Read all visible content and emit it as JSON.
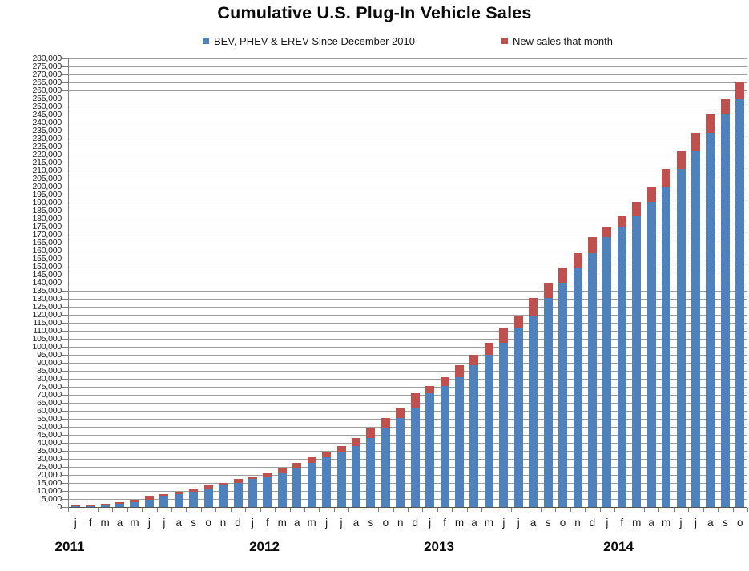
{
  "page": {
    "background": "#ffffff"
  },
  "chart_data": {
    "type": "bar",
    "stacked": true,
    "title": "Cumulative U.S. Plug-In Vehicle Sales",
    "legend_position": "top",
    "grid": true,
    "legend": [
      {
        "label": "BEV, PHEV & EREV Since December 2010",
        "color": "#4f81bd",
        "series": "cumulative_base"
      },
      {
        "label": "New sales that month",
        "color": "#c0504d",
        "series": "new_sales"
      }
    ],
    "colors": {
      "cumulative_bar": "#4f81bd",
      "new_sales_bar": "#c0504d",
      "gridline": "#9d9d9d",
      "axis": "#555555",
      "text": "#191919"
    },
    "y_axis": {
      "min": 0,
      "max": 280000,
      "step": 5000,
      "tick_format": "#,##0"
    },
    "x_axis": {
      "unit": "month",
      "month_letter_order": [
        "j",
        "f",
        "m",
        "a",
        "m",
        "j",
        "j",
        "a",
        "s",
        "o",
        "n",
        "d"
      ]
    },
    "start_cumulative_dec_2010": 345,
    "years": [
      {
        "label": "2011",
        "months": [
          {
            "m": "j",
            "new_sales": 408,
            "cumulative_total": 753
          },
          {
            "m": "f",
            "new_sales": 348,
            "cumulative_total": 1101
          },
          {
            "m": "m",
            "new_sales": 906,
            "cumulative_total": 2007
          },
          {
            "m": "a",
            "new_sales": 1066,
            "cumulative_total": 3073
          },
          {
            "m": "m",
            "new_sales": 1623,
            "cumulative_total": 4696
          },
          {
            "m": "j",
            "new_sales": 2269,
            "cumulative_total": 6965
          },
          {
            "m": "j",
            "new_sales": 1056,
            "cumulative_total": 8021
          },
          {
            "m": "a",
            "new_sales": 1664,
            "cumulative_total": 9685
          },
          {
            "m": "s",
            "new_sales": 1754,
            "cumulative_total": 11439
          },
          {
            "m": "o",
            "new_sales": 1957,
            "cumulative_total": 13396
          },
          {
            "m": "n",
            "new_sales": 1811,
            "cumulative_total": 15207
          },
          {
            "m": "d",
            "new_sales": 2483,
            "cumulative_total": 17690
          }
        ]
      },
      {
        "label": "2012",
        "months": [
          {
            "m": "j",
            "new_sales": 1290,
            "cumulative_total": 18980
          },
          {
            "m": "f",
            "new_sales": 1852,
            "cumulative_total": 20832
          },
          {
            "m": "m",
            "new_sales": 3879,
            "cumulative_total": 24711
          },
          {
            "m": "a",
            "new_sales": 2594,
            "cumulative_total": 27305
          },
          {
            "m": "m",
            "new_sales": 3562,
            "cumulative_total": 30867
          },
          {
            "m": "j",
            "new_sales": 3697,
            "cumulative_total": 34564
          },
          {
            "m": "j",
            "new_sales": 3648,
            "cumulative_total": 38212
          },
          {
            "m": "a",
            "new_sales": 4715,
            "cumulative_total": 42927
          },
          {
            "m": "s",
            "new_sales": 5972,
            "cumulative_total": 48899
          },
          {
            "m": "o",
            "new_sales": 6535,
            "cumulative_total": 55434
          },
          {
            "m": "n",
            "new_sales": 6587,
            "cumulative_total": 62021
          },
          {
            "m": "d",
            "new_sales": 9091,
            "cumulative_total": 71112
          }
        ]
      },
      {
        "label": "2013",
        "months": [
          {
            "m": "j",
            "new_sales": 4510,
            "cumulative_total": 75622
          },
          {
            "m": "f",
            "new_sales": 5585,
            "cumulative_total": 81207
          },
          {
            "m": "m",
            "new_sales": 7138,
            "cumulative_total": 88345
          },
          {
            "m": "a",
            "new_sales": 6534,
            "cumulative_total": 94879
          },
          {
            "m": "m",
            "new_sales": 7767,
            "cumulative_total": 102646
          },
          {
            "m": "j",
            "new_sales": 8860,
            "cumulative_total": 111506
          },
          {
            "m": "j",
            "new_sales": 7510,
            "cumulative_total": 119016
          },
          {
            "m": "a",
            "new_sales": 11305,
            "cumulative_total": 130321
          },
          {
            "m": "s",
            "new_sales": 9033,
            "cumulative_total": 139354
          },
          {
            "m": "o",
            "new_sales": 9531,
            "cumulative_total": 148885
          },
          {
            "m": "n",
            "new_sales": 9820,
            "cumulative_total": 158705
          },
          {
            "m": "d",
            "new_sales": 9567,
            "cumulative_total": 168272
          }
        ]
      },
      {
        "label": "2014",
        "months": [
          {
            "m": "j",
            "new_sales": 6127,
            "cumulative_total": 174399
          },
          {
            "m": "f",
            "new_sales": 6963,
            "cumulative_total": 181362
          },
          {
            "m": "m",
            "new_sales": 9331,
            "cumulative_total": 190693
          },
          {
            "m": "a",
            "new_sales": 9027,
            "cumulative_total": 199720
          },
          {
            "m": "m",
            "new_sales": 11159,
            "cumulative_total": 210879
          },
          {
            "m": "j",
            "new_sales": 10875,
            "cumulative_total": 221754
          },
          {
            "m": "j",
            "new_sales": 11717,
            "cumulative_total": 233471
          },
          {
            "m": "a",
            "new_sales": 11966,
            "cumulative_total": 245437
          },
          {
            "m": "s",
            "new_sales": 9672,
            "cumulative_total": 255109
          },
          {
            "m": "o",
            "new_sales": 10153,
            "cumulative_total": 265262
          }
        ]
      }
    ]
  }
}
